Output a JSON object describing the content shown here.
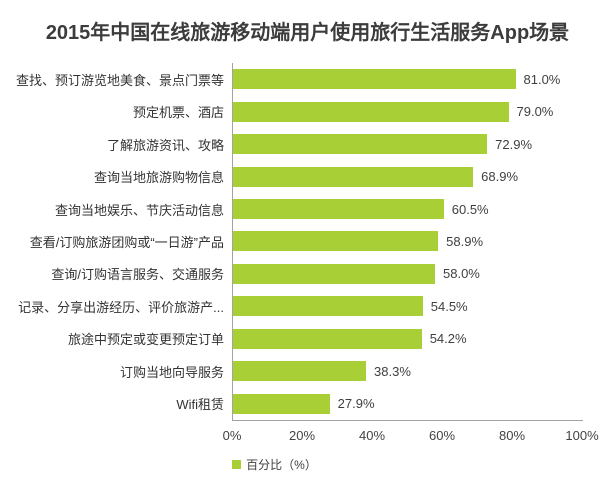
{
  "title": "2015年中国在线旅游移动端用户使用旅行生活服务App场景",
  "legend": {
    "label": "百分比（%）"
  },
  "colors": {
    "bar": "#a8d036",
    "axis_line": "#a3a3a3",
    "title_text": "#3c3c3c",
    "label_text": "#333333",
    "background": "#ffffff"
  },
  "chart_data": {
    "type": "bar",
    "orientation": "horizontal",
    "title": "2015年中国在线旅游移动端用户使用旅行生活服务App场景",
    "categories": [
      "查找、预订游览地美食、景点门票等",
      "预定机票、酒店",
      "了解旅游资讯、攻略",
      "查询当地旅游购物信息",
      "查询当地娱乐、节庆活动信息",
      "查看/订购旅游团购或“一日游”产品",
      "查询/订购语言服务、交通服务",
      "记录、分享出游经历、评价旅游产...",
      "旅途中预定或变更预定订单",
      "订购当地向导服务",
      "Wifi租赁"
    ],
    "values": [
      81.0,
      79.0,
      72.9,
      68.9,
      60.5,
      58.9,
      58.0,
      54.5,
      54.2,
      38.3,
      27.9
    ],
    "value_labels": [
      "81.0%",
      "79.0%",
      "72.9%",
      "68.9%",
      "60.5%",
      "58.9%",
      "58.0%",
      "54.5%",
      "54.2%",
      "38.3%",
      "27.9%"
    ],
    "xlabel": "",
    "ylabel": "",
    "xlim": [
      0,
      100
    ],
    "x_tick_labels": [
      "0%",
      "20%",
      "40%",
      "60%",
      "80%",
      "100%"
    ],
    "x_tick_values": [
      0,
      20,
      40,
      60,
      80,
      100
    ],
    "grid": false,
    "legend_position": "bottom-center",
    "legend_entries": [
      "百分比（%）"
    ],
    "bar_color": "#a8d036"
  }
}
